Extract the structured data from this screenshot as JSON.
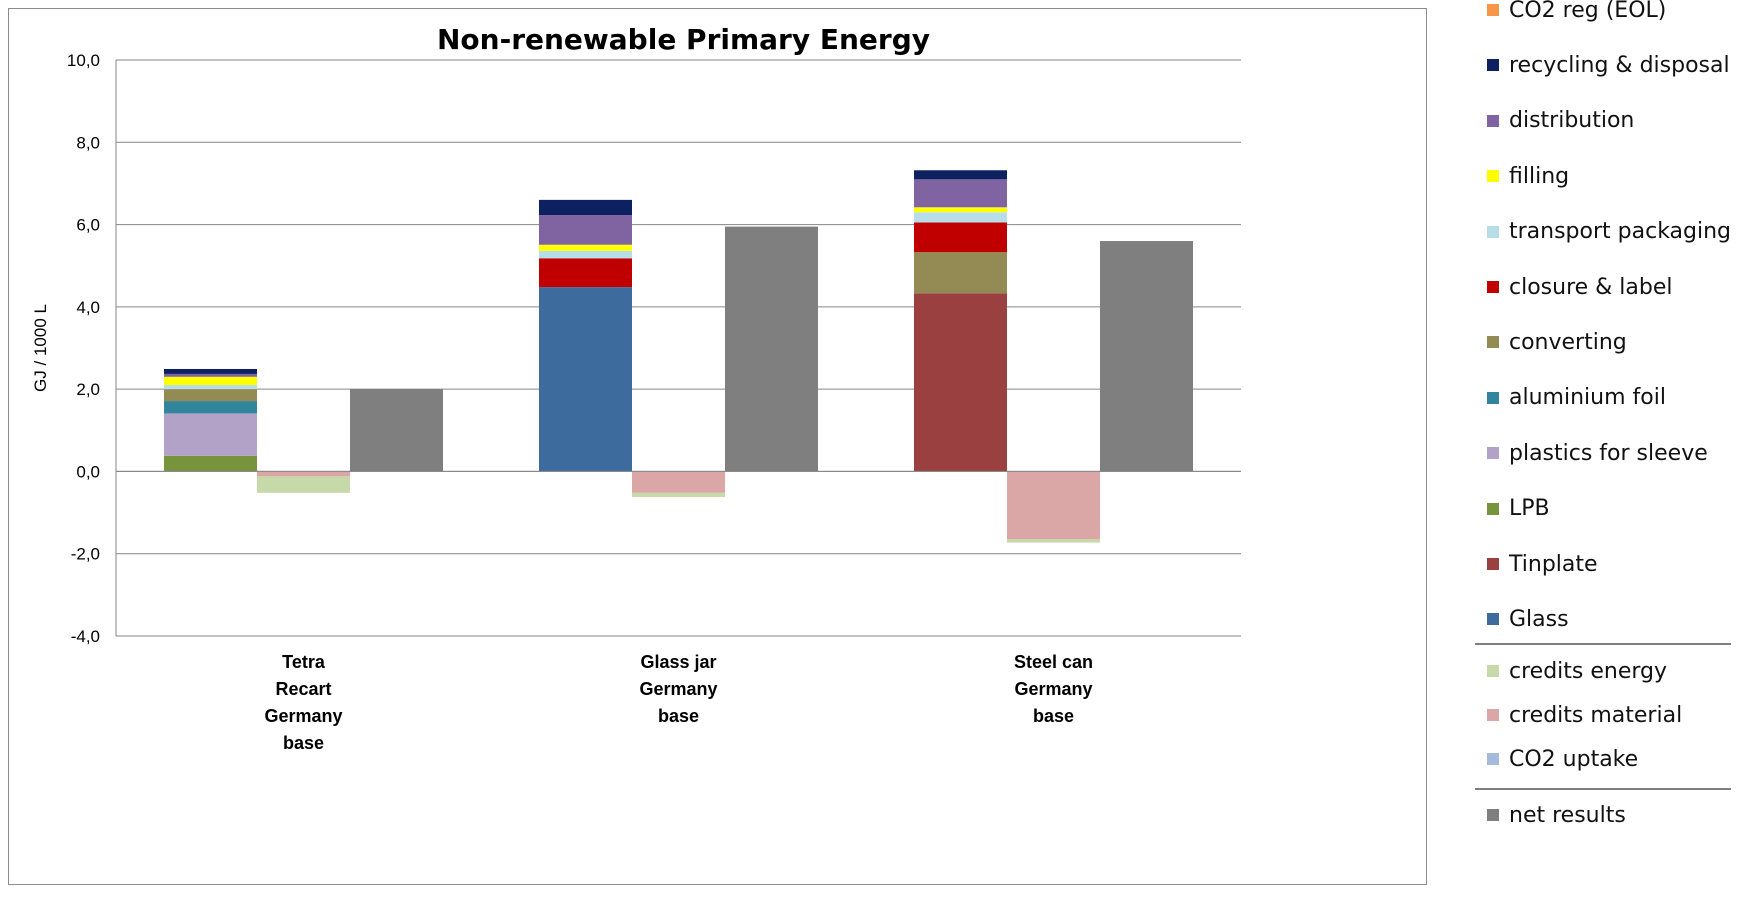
{
  "chart_data": {
    "type": "bar",
    "title": "Non-renewable Primary Energy",
    "ylabel": "GJ / 1000 L",
    "xlabel": "",
    "ylim": [
      -4,
      10
    ],
    "yticks": [
      10,
      8,
      6,
      4,
      2,
      0,
      -2,
      -4
    ],
    "ytick_labels": [
      "10,0",
      "8,0",
      "6,0",
      "4,0",
      "2,0",
      "0,0",
      "-2,0",
      "-4,0"
    ],
    "grid": true,
    "legend_position": "right",
    "categories": [
      {
        "label_lines": [
          "Tetra",
          "Recart",
          "Germany",
          "base"
        ]
      },
      {
        "label_lines": [
          "Glass jar",
          "Germany",
          "base"
        ]
      },
      {
        "label_lines": [
          "Steel can",
          "Germany",
          "base"
        ]
      }
    ],
    "stack_series": [
      {
        "name": "Glass",
        "color": "#3e6b9e",
        "values": [
          0,
          4.48,
          0
        ]
      },
      {
        "name": "Tinplate",
        "color": "#9b4040",
        "values": [
          0,
          0,
          4.33
        ]
      },
      {
        "name": "LPB",
        "color": "#77933c",
        "values": [
          0.38,
          0,
          0
        ]
      },
      {
        "name": "plastics for sleeve",
        "color": "#b3a2c7",
        "values": [
          1.03,
          0,
          0
        ]
      },
      {
        "name": "aluminium foil",
        "color": "#31859c",
        "values": [
          0.3,
          0,
          0
        ]
      },
      {
        "name": "converting",
        "color": "#948a54",
        "values": [
          0.29,
          0,
          1.0
        ]
      },
      {
        "name": "closure & label",
        "color": "#c00000",
        "values": [
          0,
          0.7,
          0.72
        ]
      },
      {
        "name": "transport packaging",
        "color": "#b7dee8",
        "values": [
          0.1,
          0.18,
          0.25
        ]
      },
      {
        "name": "filling",
        "color": "#ffff00",
        "values": [
          0.2,
          0.15,
          0.12
        ]
      },
      {
        "name": "distribution",
        "color": "#8064a2",
        "values": [
          0.07,
          0.72,
          0.68
        ]
      },
      {
        "name": "recycling & disposal",
        "color": "#0d2060",
        "values": [
          0.12,
          0.37,
          0.22
        ]
      },
      {
        "name": "CO2 reg (EOL)",
        "color": "#f79646",
        "values": [
          0,
          0,
          0
        ]
      }
    ],
    "credit_series": [
      {
        "name": "credits material",
        "color": "#dba6a6",
        "values": [
          -0.12,
          -0.52,
          -1.65
        ]
      },
      {
        "name": "credits energy",
        "color": "#c6d9a8",
        "values": [
          -0.4,
          -0.1,
          -0.08
        ]
      },
      {
        "name": "CO2 uptake",
        "color": "#a6bbdb",
        "values": [
          0,
          0,
          0
        ]
      }
    ],
    "net_series": {
      "name": "net results",
      "color": "#7f7f7f",
      "values": [
        2.0,
        5.95,
        5.6
      ]
    }
  },
  "legend": {
    "groups": [
      [
        {
          "label": "CO2 reg (EOL)",
          "color": "#f79646"
        },
        {
          "label": "recycling & disposal",
          "color": "#0d2060"
        },
        {
          "label": "distribution",
          "color": "#8064a2"
        },
        {
          "label": "filling",
          "color": "#ffff00"
        },
        {
          "label": "transport packaging",
          "color": "#b7dee8"
        },
        {
          "label": "closure & label",
          "color": "#c00000"
        },
        {
          "label": "converting",
          "color": "#948a54"
        },
        {
          "label": "aluminium foil",
          "color": "#31859c"
        },
        {
          "label": "plastics for sleeve",
          "color": "#b3a2c7"
        },
        {
          "label": "LPB",
          "color": "#77933c"
        },
        {
          "label": "Tinplate",
          "color": "#9b4040"
        },
        {
          "label": "Glass",
          "color": "#3e6b9e"
        }
      ],
      [
        {
          "label": "credits energy",
          "color": "#c6d9a8"
        },
        {
          "label": "credits material",
          "color": "#dba6a6"
        },
        {
          "label": "CO2 uptake",
          "color": "#a6bbdb"
        }
      ],
      [
        {
          "label": "net results",
          "color": "#7f7f7f"
        }
      ]
    ]
  }
}
